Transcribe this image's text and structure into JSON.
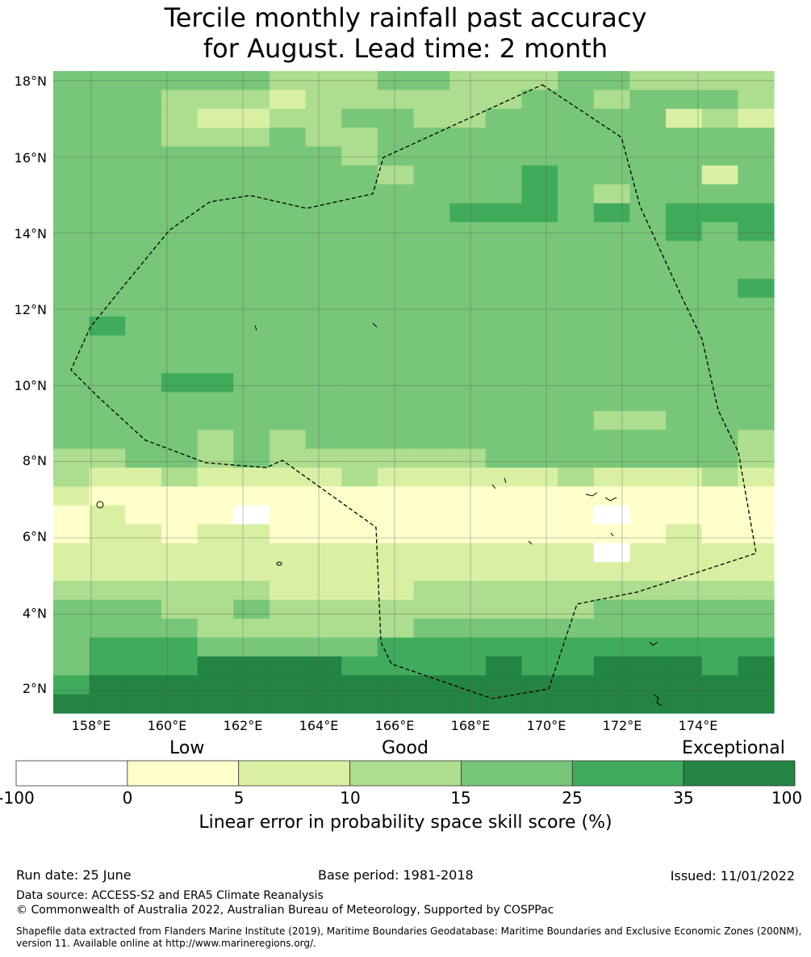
{
  "title": {
    "line1": "Tercile monthly rainfall past accuracy",
    "line2": "for August. Lead time: 2 month"
  },
  "map": {
    "lat_labels": [
      "18°N",
      "16°N",
      "14°N",
      "12°N",
      "10°N",
      "8°N",
      "6°N",
      "4°N",
      "2°N"
    ],
    "lon_labels": [
      "158°E",
      "160°E",
      "162°E",
      "164°E",
      "166°E",
      "168°E",
      "170°E",
      "172°E",
      "174°E"
    ],
    "lat_values": [
      18,
      16,
      14,
      12,
      10,
      8,
      6,
      4,
      2
    ],
    "lon_values": [
      158,
      160,
      162,
      164,
      166,
      168,
      170,
      172,
      174
    ],
    "extent": {
      "lon_min": 157.0,
      "lon_max": 176.0,
      "lat_min": 1.4,
      "lat_max": 18.25
    },
    "cell_size_degrees": 0.83,
    "rows_note_top_to_bottom": "color class index per cell (0=-100..0, 1=0..5, 2=5..10, 3=10..15, 4=15..25, 5=25..35, 6=35..100)",
    "grid": [
      "44444433344333443333",
      "44433323333334434443",
      "44432233443344444232",
      "44433343344444444444",
      "44444444344444444444",
      "44444444434445444424",
      "44444444444445434444",
      "44444444444555454555",
      "44444444444444444545",
      "44444444444444444444",
      "44444444444444444444",
      "44444444444444444445",
      "44444444444444444444",
      "45444444444444444444",
      "44444444444444444444",
      "44444444444444444444",
      "44455444444444444444",
      "44444444444444444444",
      "44444444444444433444",
      "44443434444444444443",
      "33443433333344444443",
      "32232222322222322232",
      "21111111111111111111",
      "12111011111111101111",
      "12212211111111111211",
      "22222222222222202222",
      "22222222222222222222",
      "33333322223333333333",
      "44433433333333344444",
      "44443333334444444444",
      "45554444455555555555",
      "45556666555565566656",
      "56666666666666666666",
      "66666666666666666666"
    ],
    "color_classes": [
      "#ffffff",
      "#ffffcc",
      "#d9f0a3",
      "#addd8e",
      "#78c679",
      "#41ab5d",
      "#238443"
    ]
  },
  "colorbar": {
    "categories": [
      "Low",
      "Good",
      "Exceptional"
    ],
    "ticks": [
      "-100",
      "0",
      "5",
      "10",
      "15",
      "25",
      "35",
      "100"
    ],
    "colors": [
      "#ffffff",
      "#ffffcc",
      "#d9f0a3",
      "#addd8e",
      "#78c679",
      "#41ab5d",
      "#238443"
    ],
    "label": "Linear error in probability space skill score (%)"
  },
  "footer": {
    "run_date": "Run date: 25 June",
    "base_period": "Base period: 1981-2018",
    "issued": "Issued: 11/01/2022",
    "data_source": "Data source: ACCESS-S2 and ERA5 Climate Reanalysis",
    "copyright": "© Commonwealth of Australia 2022, Australian Bureau of Meteorology, Supported by COSPPac",
    "shapefile_line1": "Shapefile data extracted from Flanders Marine Institute (2019), Maritime Boundaries Geodatabase: Maritime Boundaries and Exclusive Economic Zones (200NM),",
    "shapefile_line2": "version 11. Available online at http://www.marineregions.org/."
  }
}
